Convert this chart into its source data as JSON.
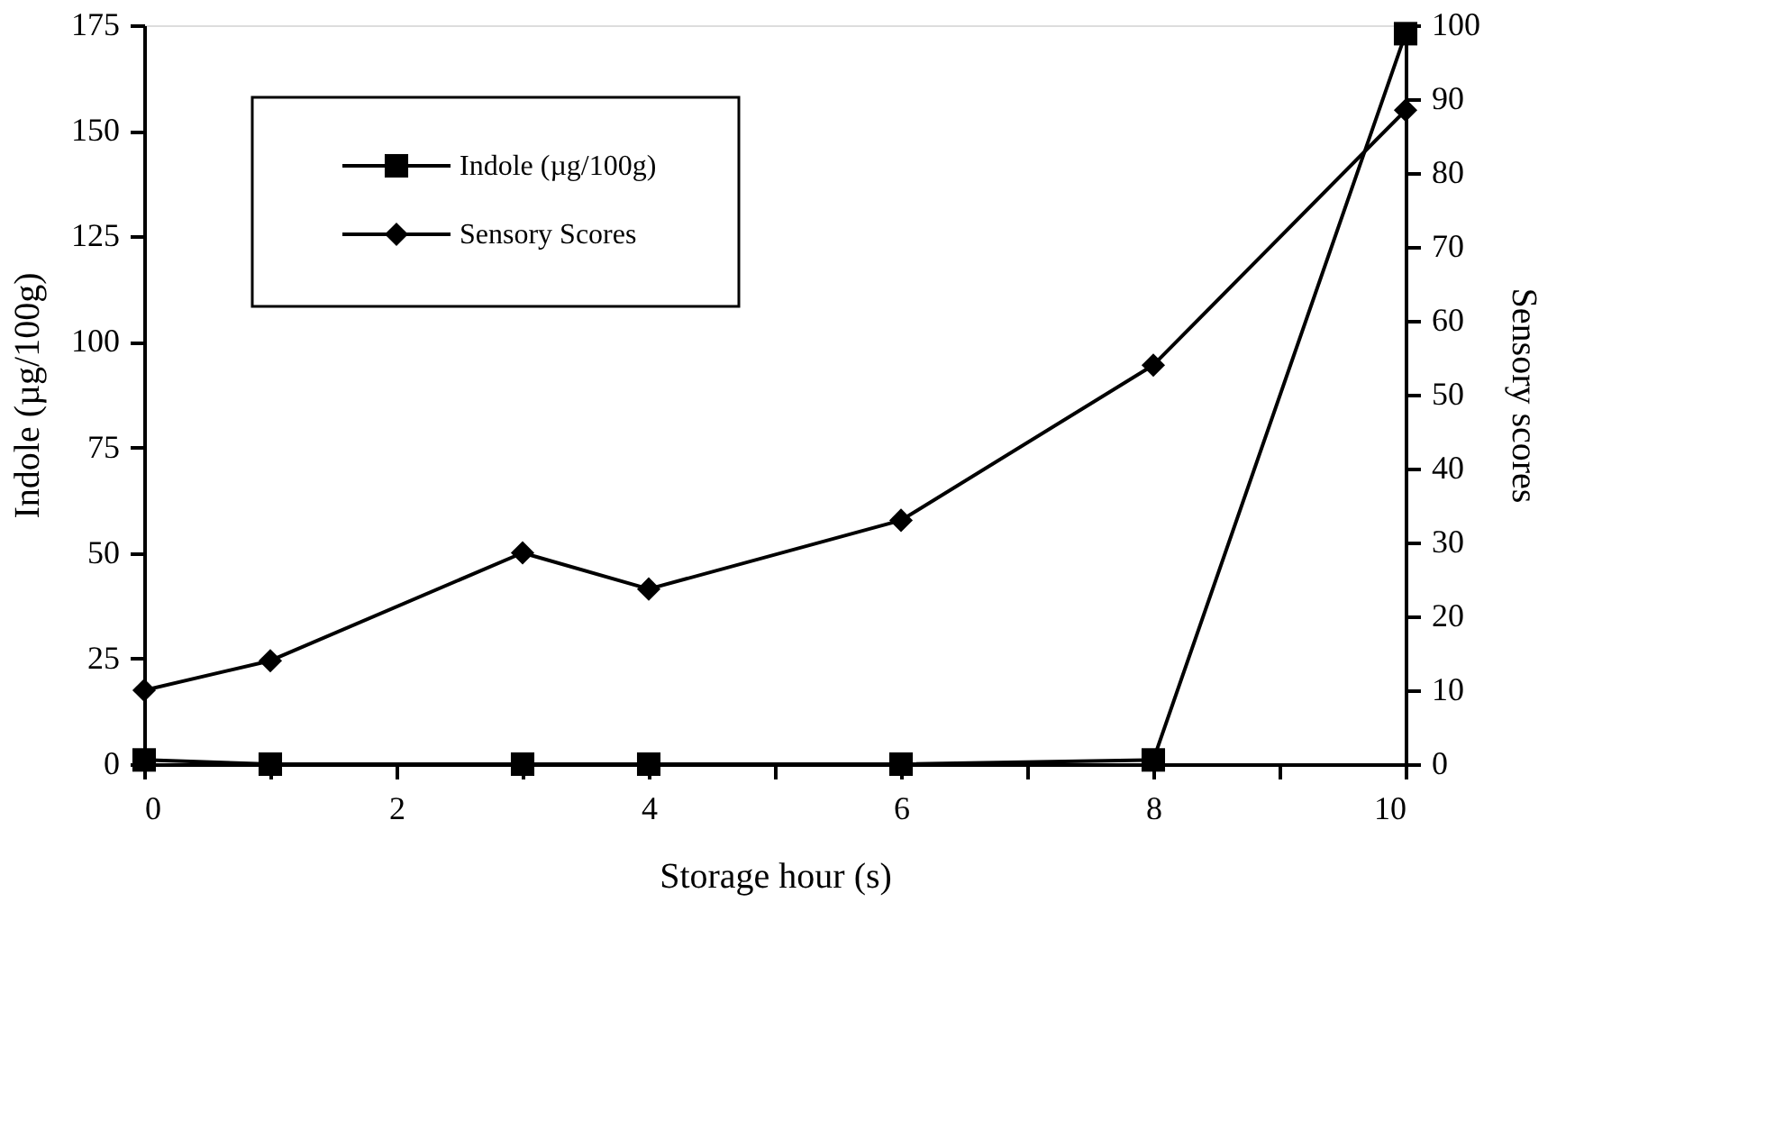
{
  "chart_data": {
    "type": "line",
    "xlabel": "Storage hour (s)",
    "ylabel": "Indole (µg/100g)",
    "y2label": "Sensory scores",
    "x": [
      0,
      1,
      3,
      4,
      6,
      8,
      10
    ],
    "series": [
      {
        "name": "Indole (µg/100g)",
        "color": "#000000",
        "marker": "square",
        "values": [
          1,
          0,
          0,
          0,
          0,
          1,
          173
        ]
      },
      {
        "name": "Sensory Scores",
        "color": "#000000",
        "marker": "diamond",
        "axis": "y2",
        "values": [
          10,
          14,
          28.6,
          23.7,
          33,
          54,
          88.5
        ]
      }
    ],
    "xlim": [
      0,
      10
    ],
    "xticks": [
      0,
      {
        "value": 1,
        "label": null
      },
      2,
      {
        "value": 3,
        "label": null
      },
      4,
      {
        "value": 5,
        "label": null
      },
      6,
      {
        "value": 7,
        "label": null
      },
      8,
      {
        "value": 9,
        "label": null
      },
      10
    ],
    "ylim": [
      0,
      175
    ],
    "yticks": [
      0,
      25,
      50,
      75,
      100,
      125,
      150,
      175
    ],
    "y2lim": [
      0,
      100
    ],
    "y2ticks": [
      0,
      10,
      20,
      30,
      40,
      50,
      60,
      70,
      80,
      90,
      100
    ],
    "grid": false,
    "legend": "top left",
    "line_style": "solid"
  }
}
